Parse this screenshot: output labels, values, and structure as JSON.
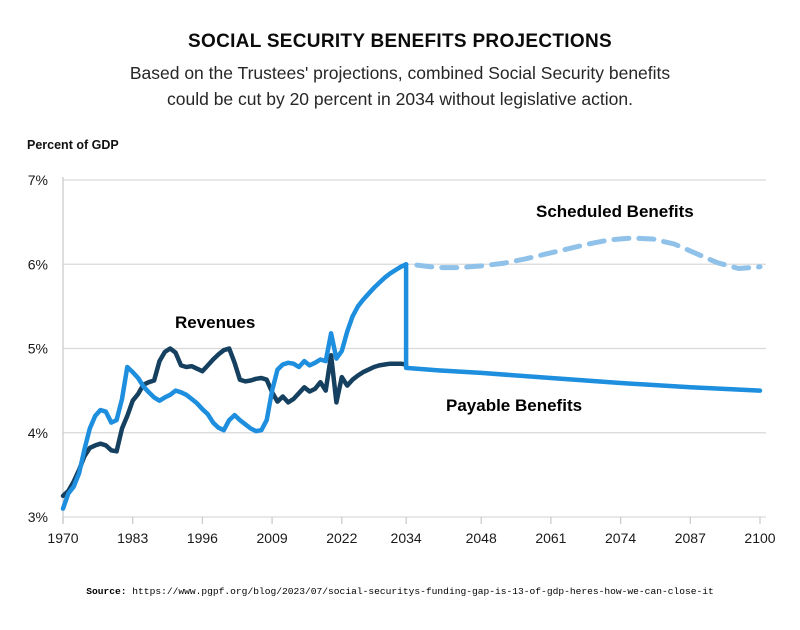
{
  "header": {
    "title": "SOCIAL SECURITY BENEFITS PROJECTIONS",
    "subtitle": [
      "Based on the Trustees' projections, combined Social Security benefits",
      "could be cut by 20 percent in 2034 without legislative action."
    ]
  },
  "colors": {
    "navy": "#16405F",
    "blue": "#1E8EDE",
    "light_blue": "#8FC1E9",
    "grid": "#D9D9D9",
    "axis": "#CCCCCC",
    "tick_text": "#1A1A1A"
  },
  "chart_data": {
    "type": "line",
    "title": "Social Security benefits and revenues, percent of GDP, 1970-2100",
    "ylabel": "Percent of GDP",
    "xlabel": "",
    "grid": true,
    "legend_position": "inline-labels",
    "xlim": [
      1970,
      2100
    ],
    "ylim": [
      3,
      7
    ],
    "x_ticks": [
      1970,
      1983,
      1996,
      2009,
      2022,
      2034,
      2048,
      2061,
      2074,
      2087,
      2100
    ],
    "y_ticks": [
      {
        "value": 7,
        "label": "7%"
      },
      {
        "value": 6,
        "label": "6%"
      },
      {
        "value": 5,
        "label": "5%"
      },
      {
        "value": 4,
        "label": "4%"
      },
      {
        "value": 3,
        "label": "3%"
      }
    ],
    "series": [
      {
        "name": "Revenues",
        "color": "#16405F",
        "dash": false,
        "width": 4.5,
        "points": [
          [
            1970,
            3.25
          ],
          [
            1971,
            3.31
          ],
          [
            1972,
            3.42
          ],
          [
            1973,
            3.56
          ],
          [
            1974,
            3.72
          ],
          [
            1975,
            3.82
          ],
          [
            1976,
            3.85
          ],
          [
            1977,
            3.87
          ],
          [
            1978,
            3.85
          ],
          [
            1979,
            3.79
          ],
          [
            1980,
            3.78
          ],
          [
            1981,
            4.05
          ],
          [
            1982,
            4.2
          ],
          [
            1983,
            4.38
          ],
          [
            1984,
            4.46
          ],
          [
            1985,
            4.57
          ],
          [
            1986,
            4.6
          ],
          [
            1987,
            4.62
          ],
          [
            1988,
            4.85
          ],
          [
            1989,
            4.96
          ],
          [
            1990,
            5.0
          ],
          [
            1991,
            4.95
          ],
          [
            1992,
            4.8
          ],
          [
            1993,
            4.78
          ],
          [
            1994,
            4.79
          ],
          [
            1995,
            4.76
          ],
          [
            1996,
            4.73
          ],
          [
            1997,
            4.8
          ],
          [
            1998,
            4.87
          ],
          [
            1999,
            4.93
          ],
          [
            2000,
            4.98
          ],
          [
            2001,
            5.0
          ],
          [
            2002,
            4.83
          ],
          [
            2003,
            4.63
          ],
          [
            2004,
            4.61
          ],
          [
            2005,
            4.62
          ],
          [
            2006,
            4.64
          ],
          [
            2007,
            4.65
          ],
          [
            2008,
            4.63
          ],
          [
            2009,
            4.48
          ],
          [
            2010,
            4.37
          ],
          [
            2011,
            4.43
          ],
          [
            2012,
            4.36
          ],
          [
            2013,
            4.4
          ],
          [
            2014,
            4.47
          ],
          [
            2015,
            4.54
          ],
          [
            2016,
            4.49
          ],
          [
            2017,
            4.52
          ],
          [
            2018,
            4.6
          ],
          [
            2019,
            4.5
          ],
          [
            2020,
            4.92
          ],
          [
            2021,
            4.36
          ],
          [
            2022,
            4.66
          ],
          [
            2023,
            4.56
          ],
          [
            2024,
            4.63
          ],
          [
            2025,
            4.68
          ],
          [
            2026,
            4.72
          ],
          [
            2027,
            4.75
          ],
          [
            2028,
            4.78
          ],
          [
            2029,
            4.8
          ],
          [
            2030,
            4.81
          ],
          [
            2031,
            4.82
          ],
          [
            2032,
            4.82
          ],
          [
            2033,
            4.82
          ],
          [
            2034,
            4.81
          ]
        ]
      },
      {
        "name": "Benefits (historical)",
        "color": "#1E8EDE",
        "dash": false,
        "width": 4.5,
        "points": [
          [
            1970,
            3.1
          ],
          [
            1971,
            3.28
          ],
          [
            1972,
            3.36
          ],
          [
            1973,
            3.52
          ],
          [
            1974,
            3.8
          ],
          [
            1975,
            4.05
          ],
          [
            1976,
            4.2
          ],
          [
            1977,
            4.27
          ],
          [
            1978,
            4.25
          ],
          [
            1979,
            4.12
          ],
          [
            1980,
            4.15
          ],
          [
            1981,
            4.4
          ],
          [
            1982,
            4.78
          ],
          [
            1983,
            4.72
          ],
          [
            1984,
            4.65
          ],
          [
            1985,
            4.55
          ],
          [
            1986,
            4.48
          ],
          [
            1987,
            4.42
          ],
          [
            1988,
            4.38
          ],
          [
            1989,
            4.42
          ],
          [
            1990,
            4.45
          ],
          [
            1991,
            4.5
          ],
          [
            1992,
            4.48
          ],
          [
            1993,
            4.45
          ],
          [
            1994,
            4.4
          ],
          [
            1995,
            4.35
          ],
          [
            1996,
            4.28
          ],
          [
            1997,
            4.22
          ],
          [
            1998,
            4.12
          ],
          [
            1999,
            4.06
          ],
          [
            2000,
            4.03
          ],
          [
            2001,
            4.15
          ],
          [
            2002,
            4.21
          ],
          [
            2003,
            4.15
          ],
          [
            2004,
            4.1
          ],
          [
            2005,
            4.05
          ],
          [
            2006,
            4.02
          ],
          [
            2007,
            4.03
          ],
          [
            2008,
            4.15
          ],
          [
            2009,
            4.5
          ],
          [
            2010,
            4.75
          ],
          [
            2011,
            4.81
          ],
          [
            2012,
            4.83
          ],
          [
            2013,
            4.82
          ],
          [
            2014,
            4.78
          ],
          [
            2015,
            4.85
          ],
          [
            2016,
            4.8
          ],
          [
            2017,
            4.83
          ],
          [
            2018,
            4.87
          ],
          [
            2019,
            4.85
          ],
          [
            2020,
            5.18
          ],
          [
            2021,
            4.88
          ],
          [
            2022,
            4.97
          ],
          [
            2023,
            5.2
          ],
          [
            2024,
            5.38
          ],
          [
            2025,
            5.5
          ],
          [
            2026,
            5.58
          ],
          [
            2027,
            5.65
          ],
          [
            2028,
            5.72
          ],
          [
            2029,
            5.78
          ],
          [
            2030,
            5.84
          ],
          [
            2031,
            5.89
          ],
          [
            2032,
            5.93
          ],
          [
            2033,
            5.97
          ],
          [
            2034,
            6.0
          ]
        ]
      },
      {
        "name": "Payable Benefits",
        "color": "#1E8EDE",
        "dash": false,
        "width": 4.5,
        "points": [
          [
            2034,
            6.0
          ],
          [
            2034,
            4.77
          ],
          [
            2040,
            4.74
          ],
          [
            2048,
            4.71
          ],
          [
            2061,
            4.65
          ],
          [
            2074,
            4.59
          ],
          [
            2087,
            4.54
          ],
          [
            2100,
            4.5
          ]
        ]
      },
      {
        "name": "Scheduled Benefits",
        "color": "#8FC1E9",
        "dash": true,
        "width": 5,
        "points": [
          [
            2036,
            5.99
          ],
          [
            2040,
            5.96
          ],
          [
            2044,
            5.96
          ],
          [
            2048,
            5.98
          ],
          [
            2052,
            6.01
          ],
          [
            2056,
            6.06
          ],
          [
            2060,
            6.12
          ],
          [
            2064,
            6.18
          ],
          [
            2068,
            6.24
          ],
          [
            2072,
            6.29
          ],
          [
            2076,
            6.31
          ],
          [
            2080,
            6.3
          ],
          [
            2084,
            6.24
          ],
          [
            2088,
            6.13
          ],
          [
            2092,
            6.02
          ],
          [
            2096,
            5.95
          ],
          [
            2100,
            5.97
          ]
        ]
      }
    ],
    "annotations": [
      {
        "text": "Revenues",
        "color": "#16405F"
      },
      {
        "text": "Scheduled Benefits",
        "color": "#8FC1E9"
      },
      {
        "text": "Payable Benefits",
        "color": "#1E8EDE"
      }
    ]
  },
  "labels": {
    "revenues": "Revenues",
    "scheduled": "Scheduled Benefits",
    "payable": "Payable Benefits"
  },
  "source": {
    "prefix": "Source:",
    "url": "https://www.pgpf.org/blog/2023/07/social-securitys-funding-gap-is-13-of-gdp-heres-how-we-can-close-it"
  }
}
